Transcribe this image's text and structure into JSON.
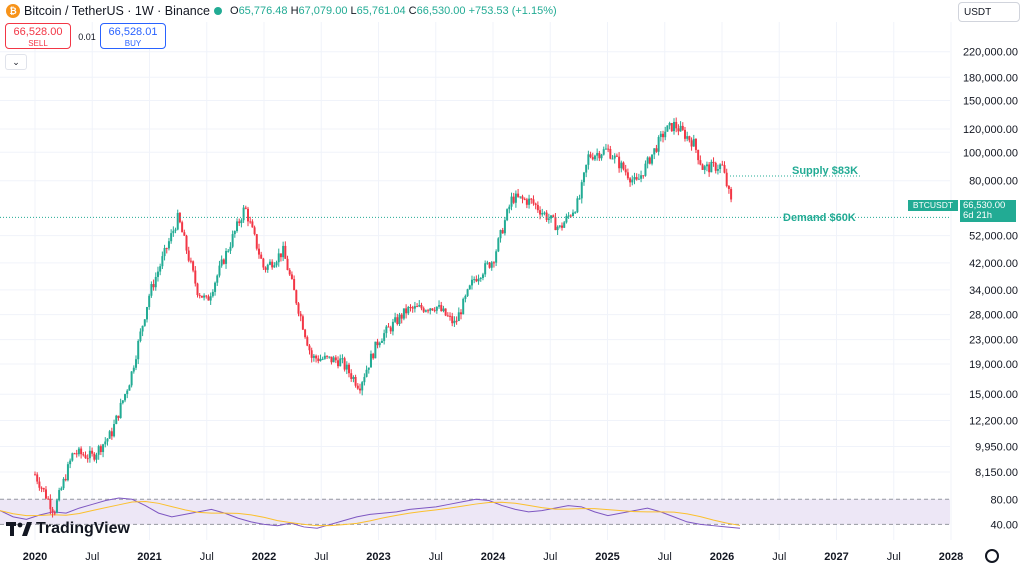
{
  "header": {
    "title": "Bitcoin / TetherUS · 1W · Binance",
    "logo_glyph": "₿",
    "ohlc": {
      "o_label": "O",
      "o": "65,776.48",
      "h_label": "H",
      "h": "67,079.00",
      "l_label": "L",
      "l": "65,761.04",
      "c_label": "C",
      "c": "66,530.00",
      "change": "+753.53 (+1.15%)"
    },
    "status_color": "#22ab94"
  },
  "trade": {
    "sell_price": "66,528.00",
    "sell_label": "SELL",
    "spread": "0.01",
    "buy_price": "66,528.01",
    "buy_label": "BUY",
    "collapse_glyph": "⌄"
  },
  "currency": {
    "selected": "USDT"
  },
  "price_tag": {
    "symbol": "BTCUSDT",
    "price": "66,530.00",
    "countdown": "6d 21h"
  },
  "annotations": {
    "supply": "Supply $83K",
    "demand": "Demand $60K"
  },
  "branding": {
    "logo_text": "TradingView"
  },
  "colors": {
    "up": "#22ab94",
    "down": "#f23645",
    "rsi_line": "#7e57c2",
    "rsi_ma": "#fbc02d",
    "rsi_band": "#ede7f6"
  },
  "chart_data": {
    "type": "candlestick",
    "scale": "log",
    "y_ticks": [
      "220,000.00",
      "180,000.00",
      "150,000.00",
      "120,000.00",
      "100,000.00",
      "80,000.00",
      "52,000.00",
      "42,000.00",
      "34,000.00",
      "28,000.00",
      "23,000.00",
      "19,000.00",
      "15,000.00",
      "12,200.00",
      "9,950.00",
      "8,150.00"
    ],
    "x_ticks": [
      "2020",
      "Jul",
      "2021",
      "Jul",
      "2022",
      "Jul",
      "2023",
      "Jul",
      "2024",
      "Jul",
      "2025",
      "Jul",
      "2026",
      "Jul",
      "2027",
      "Jul",
      "2028"
    ],
    "anchors": [
      {
        "date": "2020-01",
        "price": 8000
      },
      {
        "date": "2020-03",
        "price": 6000
      },
      {
        "date": "2020-05",
        "price": 9500
      },
      {
        "date": "2020-07",
        "price": 9200
      },
      {
        "date": "2020-09",
        "price": 11000
      },
      {
        "date": "2020-11",
        "price": 17000
      },
      {
        "date": "2021-01",
        "price": 33000
      },
      {
        "date": "2021-04",
        "price": 60000
      },
      {
        "date": "2021-06",
        "price": 34000
      },
      {
        "date": "2021-07",
        "price": 31000
      },
      {
        "date": "2021-09",
        "price": 45000
      },
      {
        "date": "2021-11",
        "price": 65000
      },
      {
        "date": "2022-01",
        "price": 40000
      },
      {
        "date": "2022-03",
        "price": 46000
      },
      {
        "date": "2022-06",
        "price": 20000
      },
      {
        "date": "2022-09",
        "price": 19500
      },
      {
        "date": "2022-11",
        "price": 16000
      },
      {
        "date": "2023-01",
        "price": 23000
      },
      {
        "date": "2023-04",
        "price": 29000
      },
      {
        "date": "2023-07",
        "price": 30000
      },
      {
        "date": "2023-09",
        "price": 26000
      },
      {
        "date": "2023-11",
        "price": 37000
      },
      {
        "date": "2024-01",
        "price": 43000
      },
      {
        "date": "2024-03",
        "price": 70000
      },
      {
        "date": "2024-05",
        "price": 68000
      },
      {
        "date": "2024-08",
        "price": 55000
      },
      {
        "date": "2024-10",
        "price": 68000
      },
      {
        "date": "2024-11",
        "price": 97000
      },
      {
        "date": "2025-01",
        "price": 102000
      },
      {
        "date": "2025-04",
        "price": 78000
      },
      {
        "date": "2025-07",
        "price": 118000
      },
      {
        "date": "2025-08",
        "price": 124000
      },
      {
        "date": "2025-10",
        "price": 108000
      },
      {
        "date": "2025-11",
        "price": 88000
      },
      {
        "date": "2026-01",
        "price": 90000
      },
      {
        "date": "2026-02",
        "price": 66530
      }
    ],
    "levels": [
      {
        "name": "Supply",
        "price": 83000
      },
      {
        "name": "Demand",
        "price": 60000
      }
    ],
    "rsi": {
      "levels": [
        "80.00",
        "40.00"
      ],
      "values": [
        62,
        52,
        48,
        55,
        60,
        58,
        66,
        72,
        78,
        82,
        80,
        70,
        58,
        52,
        56,
        60,
        64,
        58,
        50,
        44,
        40,
        38,
        42,
        36,
        34,
        40,
        46,
        52,
        56,
        58,
        60,
        64,
        66,
        68,
        72,
        76,
        80,
        78,
        70,
        64,
        60,
        62,
        66,
        70,
        68,
        60,
        54,
        58,
        62,
        66,
        60,
        52,
        44,
        40,
        38,
        36,
        34
      ]
    }
  }
}
